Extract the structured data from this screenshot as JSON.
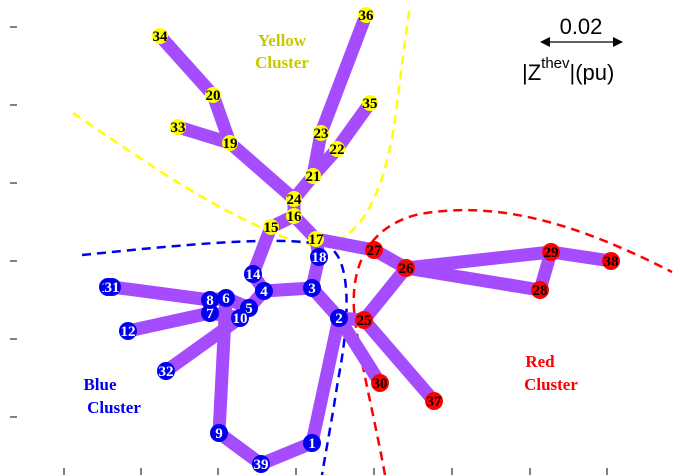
{
  "colors": {
    "edge": "#a64cff",
    "yellow_cluster": "#ffff00",
    "yellow_text": "#c8c800",
    "blue_cluster": "#0000ee",
    "red_cluster": "#ff0000",
    "axis": "#000000"
  },
  "scale_bar": {
    "value": "0.02",
    "unit_prefix": "|Z",
    "unit_sup": "thev",
    "unit_suffix": "|(pu)"
  },
  "clusters": {
    "yellow": {
      "line1": "Yellow",
      "line2": "Cluster"
    },
    "blue": {
      "line1": "Blue",
      "line2": "Cluster"
    },
    "red": {
      "line1": "Red",
      "line2": "Cluster"
    }
  },
  "nodes": [
    {
      "id": "1",
      "cluster": "blue"
    },
    {
      "id": "2",
      "cluster": "blue"
    },
    {
      "id": "3",
      "cluster": "blue"
    },
    {
      "id": "4",
      "cluster": "blue"
    },
    {
      "id": "5",
      "cluster": "blue"
    },
    {
      "id": "6",
      "cluster": "blue"
    },
    {
      "id": "7",
      "cluster": "blue"
    },
    {
      "id": "8",
      "cluster": "blue"
    },
    {
      "id": "9",
      "cluster": "blue"
    },
    {
      "id": "10",
      "cluster": "blue"
    },
    {
      "id": "11",
      "cluster": "blue"
    },
    {
      "id": "12",
      "cluster": "blue"
    },
    {
      "id": "14",
      "cluster": "blue"
    },
    {
      "id": "15",
      "cluster": "yellow"
    },
    {
      "id": "16",
      "cluster": "yellow"
    },
    {
      "id": "17",
      "cluster": "yellow"
    },
    {
      "id": "18",
      "cluster": "blue"
    },
    {
      "id": "19",
      "cluster": "yellow"
    },
    {
      "id": "20",
      "cluster": "yellow"
    },
    {
      "id": "21",
      "cluster": "yellow"
    },
    {
      "id": "22",
      "cluster": "yellow"
    },
    {
      "id": "23",
      "cluster": "yellow"
    },
    {
      "id": "24",
      "cluster": "yellow"
    },
    {
      "id": "25",
      "cluster": "red"
    },
    {
      "id": "26",
      "cluster": "red"
    },
    {
      "id": "27",
      "cluster": "red"
    },
    {
      "id": "28",
      "cluster": "red"
    },
    {
      "id": "29",
      "cluster": "red"
    },
    {
      "id": "30",
      "cluster": "red"
    },
    {
      "id": "31",
      "cluster": "blue"
    },
    {
      "id": "32",
      "cluster": "blue"
    },
    {
      "id": "33",
      "cluster": "yellow"
    },
    {
      "id": "34",
      "cluster": "yellow"
    },
    {
      "id": "35",
      "cluster": "yellow"
    },
    {
      "id": "36",
      "cluster": "yellow"
    },
    {
      "id": "37",
      "cluster": "red"
    },
    {
      "id": "38",
      "cluster": "red"
    },
    {
      "id": "39",
      "cluster": "blue"
    }
  ],
  "edges": [
    [
      "34",
      "20"
    ],
    [
      "20",
      "19"
    ],
    [
      "33",
      "19"
    ],
    [
      "19",
      "24"
    ],
    [
      "36",
      "23"
    ],
    [
      "23",
      "21"
    ],
    [
      "21",
      "24"
    ],
    [
      "35",
      "22"
    ],
    [
      "22",
      "21"
    ],
    [
      "24",
      "16"
    ],
    [
      "16",
      "15"
    ],
    [
      "16",
      "17"
    ],
    [
      "15",
      "14"
    ],
    [
      "14",
      "4"
    ],
    [
      "17",
      "18"
    ],
    [
      "17",
      "27"
    ],
    [
      "18",
      "3"
    ],
    [
      "3",
      "4"
    ],
    [
      "4",
      "5"
    ],
    [
      "5",
      "6"
    ],
    [
      "6",
      "8"
    ],
    [
      "8",
      "31"
    ],
    [
      "7",
      "12"
    ],
    [
      "7",
      "10"
    ],
    [
      "10",
      "32"
    ],
    [
      "6",
      "9"
    ],
    [
      "9",
      "39"
    ],
    [
      "39",
      "1"
    ],
    [
      "1",
      "2"
    ],
    [
      "3",
      "2"
    ],
    [
      "2",
      "30"
    ],
    [
      "2",
      "25"
    ],
    [
      "25",
      "37"
    ],
    [
      "25",
      "26"
    ],
    [
      "27",
      "26"
    ],
    [
      "26",
      "29"
    ],
    [
      "26",
      "28"
    ],
    [
      "29",
      "28"
    ],
    [
      "29",
      "38"
    ]
  ]
}
